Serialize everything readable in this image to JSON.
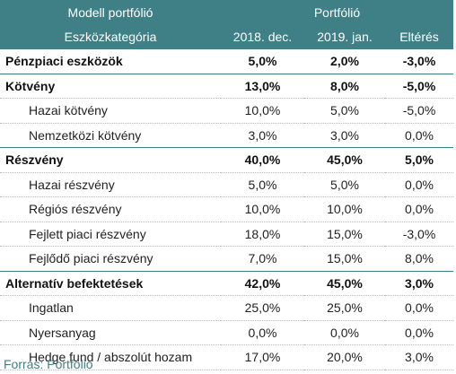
{
  "header": {
    "row1": {
      "left": "Modell portfólió",
      "group": "Portfólió"
    },
    "row2": {
      "left": "Eszközkategória",
      "col1": "2018. dec.",
      "col2": "2019. jan.",
      "col3": "Eltérés"
    }
  },
  "rows": [
    {
      "label": "Pénzpiaci eszközök",
      "v1": "5,0%",
      "v2": "2,0%",
      "v3": "-3,0%",
      "type": "group"
    },
    {
      "label": "Kötvény",
      "v1": "13,0%",
      "v2": "8,0%",
      "v3": "-5,0%",
      "type": "group"
    },
    {
      "label": "Hazai kötvény",
      "v1": "10,0%",
      "v2": "5,0%",
      "v3": "-5,0%",
      "type": "sub"
    },
    {
      "label": "Nemzetközi kötvény",
      "v1": "3,0%",
      "v2": "3,0%",
      "v3": "0,0%",
      "type": "sub"
    },
    {
      "label": "Részvény",
      "v1": "40,0%",
      "v2": "45,0%",
      "v3": "5,0%",
      "type": "group"
    },
    {
      "label": "Hazai részvény",
      "v1": "5,0%",
      "v2": "5,0%",
      "v3": "0,0%",
      "type": "sub"
    },
    {
      "label": "Régiós részvény",
      "v1": "10,0%",
      "v2": "10,0%",
      "v3": "0,0%",
      "type": "sub"
    },
    {
      "label": "Fejlett piaci részvény",
      "v1": "18,0%",
      "v2": "15,0%",
      "v3": "-3,0%",
      "type": "sub"
    },
    {
      "label": "Fejlődő piaci részvény",
      "v1": "7,0%",
      "v2": "15,0%",
      "v3": "8,0%",
      "type": "sub"
    },
    {
      "label": "Alternatív befektetések",
      "v1": "42,0%",
      "v2": "45,0%",
      "v3": "3,0%",
      "type": "group"
    },
    {
      "label": "Ingatlan",
      "v1": "25,0%",
      "v2": "25,0%",
      "v3": "0,0%",
      "type": "sub"
    },
    {
      "label": "Nyersanyag",
      "v1": "0,0%",
      "v2": "0,0%",
      "v3": "0,0%",
      "type": "sub"
    },
    {
      "label": "Hedge fund / abszolút hozam",
      "v1": "17,0%",
      "v2": "20,0%",
      "v3": "3,0%",
      "type": "sub"
    }
  ],
  "source": "Forrás: Portfolio",
  "colors": {
    "header_bg": "#3f7f86",
    "source_text": "#3f7f86"
  }
}
